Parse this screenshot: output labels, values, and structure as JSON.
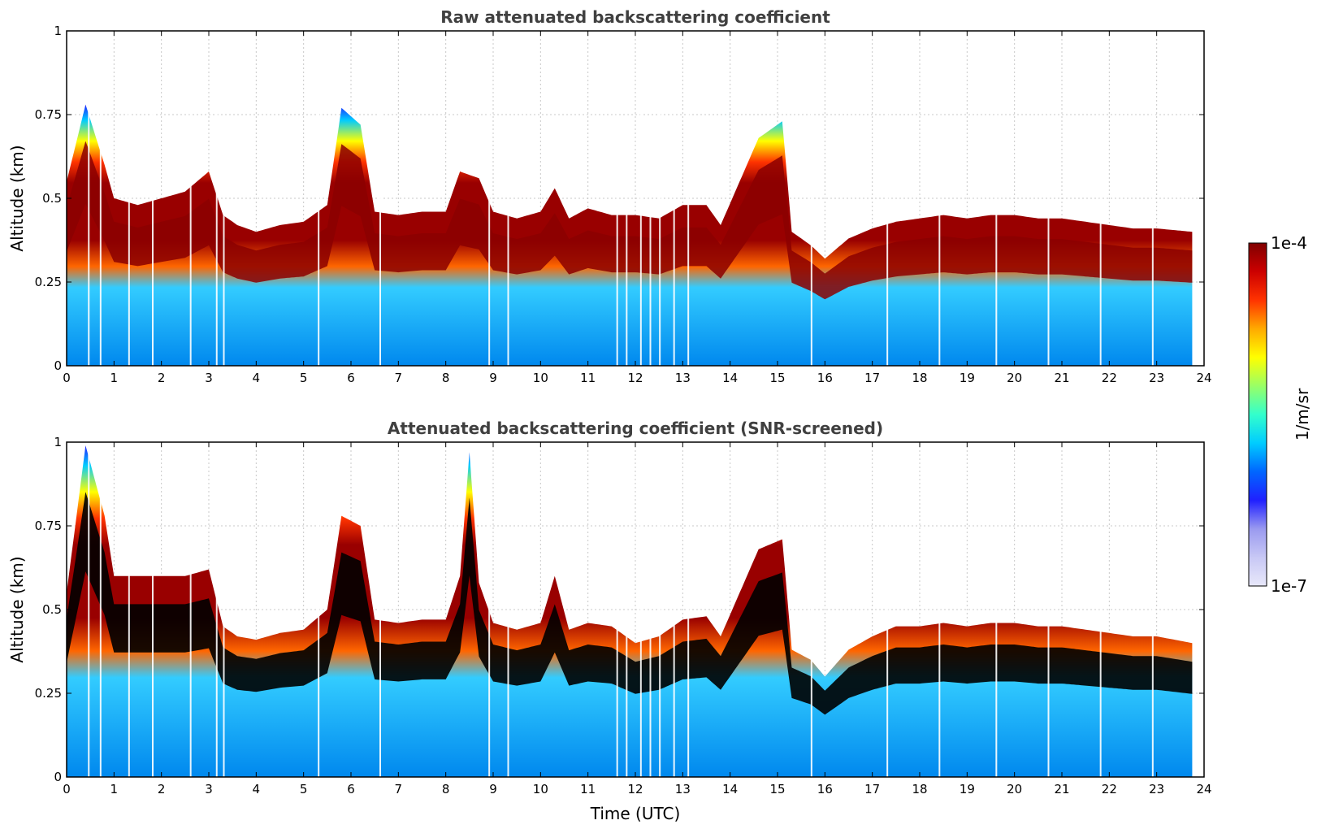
{
  "chart_data": [
    {
      "type": "heatmap",
      "title": "Raw attenuated backscattering coefficient",
      "xlabel": "",
      "ylabel": "Altitude (km)",
      "xlim": [
        0,
        24
      ],
      "ylim": [
        0,
        1
      ],
      "x_ticks": [
        "0",
        "1",
        "2",
        "3",
        "4",
        "5",
        "6",
        "7",
        "8",
        "9",
        "10",
        "11",
        "12",
        "13",
        "14",
        "15",
        "16",
        "17",
        "18",
        "19",
        "20",
        "21",
        "22",
        "23",
        "24"
      ],
      "y_ticks": [
        "0",
        "0.25",
        "0.5",
        "0.75",
        "1"
      ],
      "grid": true,
      "screened": false,
      "layer_top_km": [
        [
          0,
          0.55
        ],
        [
          0.4,
          0.78
        ],
        [
          0.8,
          0.6
        ],
        [
          1,
          0.5
        ],
        [
          1.5,
          0.48
        ],
        [
          2,
          0.5
        ],
        [
          2.5,
          0.52
        ],
        [
          3,
          0.58
        ],
        [
          3.3,
          0.45
        ],
        [
          3.6,
          0.42
        ],
        [
          4,
          0.4
        ],
        [
          4.5,
          0.42
        ],
        [
          5,
          0.43
        ],
        [
          5.5,
          0.48
        ],
        [
          5.8,
          0.77
        ],
        [
          6.2,
          0.72
        ],
        [
          6.5,
          0.46
        ],
        [
          7,
          0.45
        ],
        [
          7.5,
          0.46
        ],
        [
          8,
          0.46
        ],
        [
          8.3,
          0.58
        ],
        [
          8.7,
          0.56
        ],
        [
          9,
          0.46
        ],
        [
          9.5,
          0.44
        ],
        [
          10,
          0.46
        ],
        [
          10.3,
          0.53
        ],
        [
          10.6,
          0.44
        ],
        [
          11,
          0.47
        ],
        [
          11.5,
          0.45
        ],
        [
          12,
          0.45
        ],
        [
          12.5,
          0.44
        ],
        [
          13,
          0.48
        ],
        [
          13.5,
          0.48
        ],
        [
          13.8,
          0.42
        ],
        [
          14.2,
          0.55
        ],
        [
          14.6,
          0.68
        ],
        [
          15.1,
          0.73
        ],
        [
          15.3,
          0.4
        ],
        [
          15.7,
          0.36
        ],
        [
          16,
          0.32
        ],
        [
          16.5,
          0.38
        ],
        [
          17,
          0.41
        ],
        [
          17.5,
          0.43
        ],
        [
          18,
          0.44
        ],
        [
          18.5,
          0.45
        ],
        [
          19,
          0.44
        ],
        [
          19.5,
          0.45
        ],
        [
          20,
          0.45
        ],
        [
          20.5,
          0.44
        ],
        [
          21,
          0.44
        ],
        [
          21.5,
          0.43
        ],
        [
          22,
          0.42
        ],
        [
          22.5,
          0.41
        ],
        [
          23,
          0.41
        ],
        [
          23.75,
          0.4
        ]
      ]
    },
    {
      "type": "heatmap",
      "title": "Attenuated backscattering coefficient (SNR-screened)",
      "xlabel": "Time (UTC)",
      "ylabel": "Altitude (km)",
      "xlim": [
        0,
        24
      ],
      "ylim": [
        0,
        1
      ],
      "x_ticks": [
        "0",
        "1",
        "2",
        "3",
        "4",
        "5",
        "6",
        "7",
        "8",
        "9",
        "10",
        "11",
        "12",
        "13",
        "14",
        "15",
        "16",
        "17",
        "18",
        "19",
        "20",
        "21",
        "22",
        "23",
        "24"
      ],
      "y_ticks": [
        "0",
        "0.25",
        "0.5",
        "0.75",
        "1"
      ],
      "grid": true,
      "screened": true,
      "layer_top_km": [
        [
          0,
          0.55
        ],
        [
          0.4,
          0.99
        ],
        [
          0.8,
          0.78
        ],
        [
          1,
          0.6
        ],
        [
          1.5,
          0.6
        ],
        [
          2,
          0.6
        ],
        [
          2.5,
          0.6
        ],
        [
          3,
          0.62
        ],
        [
          3.3,
          0.45
        ],
        [
          3.6,
          0.42
        ],
        [
          4,
          0.41
        ],
        [
          4.5,
          0.43
        ],
        [
          5,
          0.44
        ],
        [
          5.5,
          0.5
        ],
        [
          5.8,
          0.78
        ],
        [
          6.2,
          0.75
        ],
        [
          6.5,
          0.47
        ],
        [
          7,
          0.46
        ],
        [
          7.5,
          0.47
        ],
        [
          8,
          0.47
        ],
        [
          8.3,
          0.6
        ],
        [
          8.5,
          0.97
        ],
        [
          8.7,
          0.58
        ],
        [
          9,
          0.46
        ],
        [
          9.5,
          0.44
        ],
        [
          10,
          0.46
        ],
        [
          10.3,
          0.6
        ],
        [
          10.6,
          0.44
        ],
        [
          11,
          0.46
        ],
        [
          11.5,
          0.45
        ],
        [
          12,
          0.4
        ],
        [
          12.5,
          0.42
        ],
        [
          13,
          0.47
        ],
        [
          13.5,
          0.48
        ],
        [
          13.8,
          0.42
        ],
        [
          14.2,
          0.55
        ],
        [
          14.6,
          0.68
        ],
        [
          15.1,
          0.71
        ],
        [
          15.3,
          0.38
        ],
        [
          15.7,
          0.35
        ],
        [
          16,
          0.3
        ],
        [
          16.5,
          0.38
        ],
        [
          17,
          0.42
        ],
        [
          17.5,
          0.45
        ],
        [
          18,
          0.45
        ],
        [
          18.5,
          0.46
        ],
        [
          19,
          0.45
        ],
        [
          19.5,
          0.46
        ],
        [
          20,
          0.46
        ],
        [
          20.5,
          0.45
        ],
        [
          21,
          0.45
        ],
        [
          21.5,
          0.44
        ],
        [
          22,
          0.43
        ],
        [
          22.5,
          0.42
        ],
        [
          23,
          0.42
        ],
        [
          23.75,
          0.4
        ]
      ]
    }
  ],
  "colorbar": {
    "label": "1/m/sr",
    "max_label": "1e-4",
    "min_label": "1e-7",
    "colors": [
      "#e8e8fa",
      "#c8c8f5",
      "#9a9af0",
      "#2020ff",
      "#0066ff",
      "#00ccff",
      "#33ffcc",
      "#99ff66",
      "#ffff00",
      "#ffaa00",
      "#ff3300",
      "#cc0000",
      "#800000"
    ]
  }
}
